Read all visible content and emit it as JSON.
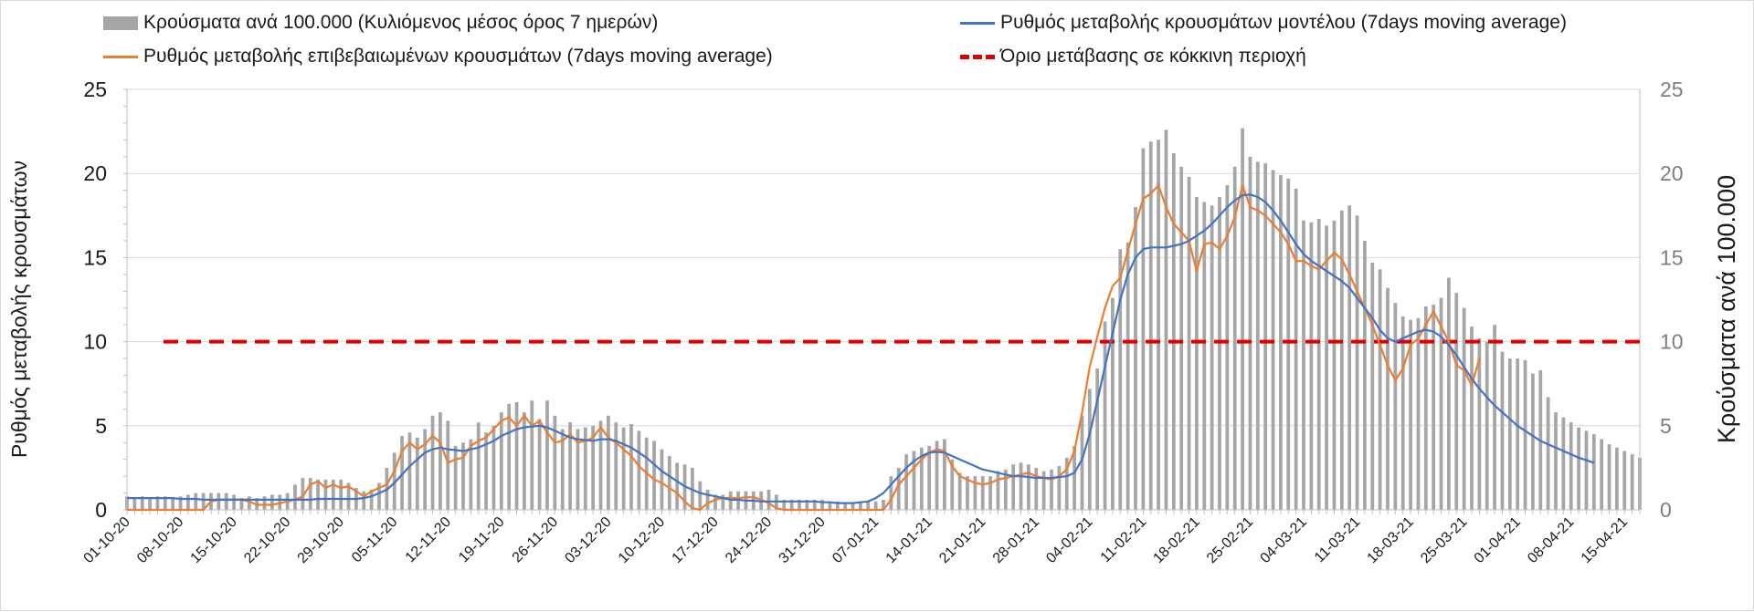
{
  "chart_data": {
    "type": "bar+line",
    "legend": {
      "bars": "Κρούσματα ανά 100.000 (Κυλιόμενος μέσος όρος 7 ημερών)",
      "model_line": "Ρυθμός μεταβολής κρουσμάτων μοντέλου (7days moving average)",
      "confirmed_line": "Ρυθμός μεταβολής επιβεβαιωμένων κρουσμάτων (7days moving average)",
      "threshold": "Όριο μετάβασης σε κόκκινη περιοχή"
    },
    "ylabel_left": "Ρυθμός μεταβολής κρουσμάτων",
    "ylabel_right": "Κρούσματα ανά 100.000",
    "ylim": [
      0,
      25
    ],
    "yticks": [
      "0",
      "5",
      "10",
      "15",
      "20",
      "25"
    ],
    "threshold_value": 10,
    "start_date": "01-10-20",
    "x_tick_labels": [
      "01-10-20",
      "08-10-20",
      "15-10-20",
      "22-10-20",
      "29-10-20",
      "05-11-20",
      "12-11-20",
      "19-11-20",
      "26-11-20",
      "03-12-20",
      "10-12-20",
      "17-12-20",
      "24-12-20",
      "31-12-20",
      "07-01-21",
      "14-01-21",
      "21-01-21",
      "28-01-21",
      "04-02-21",
      "11-02-21",
      "18-02-21",
      "25-02-21",
      "04-03-21",
      "11-03-21",
      "18-03-21",
      "25-03-21",
      "01-04-21",
      "08-04-21",
      "15-04-21"
    ],
    "cases_per_100k": [
      0.8,
      0.7,
      0.8,
      0.7,
      0.8,
      0.8,
      0.7,
      0.8,
      0.9,
      1.0,
      1.0,
      1.0,
      1.0,
      1.0,
      0.9,
      0.7,
      0.8,
      0.7,
      0.8,
      0.9,
      0.9,
      1.0,
      1.5,
      1.9,
      1.9,
      1.8,
      1.8,
      1.8,
      1.8,
      1.6,
      1.3,
      1.1,
      1.2,
      1.6,
      2.5,
      3.4,
      4.4,
      4.6,
      4.3,
      4.8,
      5.6,
      5.8,
      5.3,
      3.8,
      4.0,
      4.2,
      5.2,
      4.6,
      5.0,
      5.8,
      6.3,
      6.4,
      5.8,
      6.5,
      5.4,
      6.5,
      5.6,
      4.8,
      5.2,
      4.8,
      4.9,
      5.0,
      5.3,
      5.6,
      5.2,
      4.9,
      5.1,
      4.7,
      4.3,
      4.1,
      3.6,
      3.2,
      2.8,
      2.7,
      2.5,
      1.7,
      1.2,
      0.9,
      0.9,
      1.1,
      1.1,
      1.1,
      1.1,
      1.1,
      1.2,
      0.9,
      0.6,
      0.6,
      0.6,
      0.6,
      0.6,
      0.6,
      0.5,
      0.5,
      0.4,
      0.4,
      0.5,
      0.5,
      0.5,
      0.6,
      2.0,
      2.5,
      3.3,
      3.5,
      3.7,
      3.8,
      4.1,
      4.2,
      3.0,
      2.2,
      2.0,
      2.0,
      2.0,
      2.0,
      2.3,
      2.4,
      2.7,
      2.8,
      2.7,
      2.5,
      2.3,
      2.4,
      2.6,
      3.1,
      3.8,
      5.6,
      7.2,
      8.4,
      11.2,
      12.6,
      15.5,
      15.9,
      18.0,
      21.5,
      21.9,
      22.0,
      22.6,
      21.2,
      20.4,
      19.8,
      18.6,
      18.3,
      18.1,
      18.6,
      19.3,
      20.4,
      22.7,
      21.0,
      20.7,
      20.6,
      20.2,
      19.9,
      19.7,
      19.1,
      17.2,
      17.1,
      17.3,
      16.9,
      17.2,
      17.8,
      18.1,
      17.5,
      16.0,
      14.7,
      14.3,
      13.2,
      12.3,
      11.5,
      11.3,
      11.4,
      12.1,
      12.2,
      12.6,
      13.8,
      12.9,
      12.0,
      10.9,
      10.2,
      10.0,
      11.0,
      9.4,
      9.0,
      9.0,
      8.9,
      8.1,
      8.3,
      6.7,
      5.8,
      5.5,
      5.2,
      4.9,
      4.7,
      4.5,
      4.2,
      3.9,
      3.7,
      3.5,
      3.3,
      3.1
    ],
    "model_rate": [
      0.7,
      0.7,
      0.7,
      0.7,
      0.7,
      0.7,
      0.7,
      0.65,
      0.65,
      0.65,
      0.6,
      0.6,
      0.6,
      0.6,
      0.6,
      0.6,
      0.6,
      0.6,
      0.6,
      0.6,
      0.6,
      0.6,
      0.6,
      0.6,
      0.6,
      0.65,
      0.65,
      0.65,
      0.65,
      0.65,
      0.65,
      0.7,
      0.8,
      1.0,
      1.2,
      1.6,
      2.1,
      2.6,
      3.0,
      3.4,
      3.6,
      3.7,
      3.6,
      3.55,
      3.5,
      3.6,
      3.7,
      3.9,
      4.1,
      4.4,
      4.6,
      4.8,
      4.9,
      4.95,
      5.0,
      4.9,
      4.7,
      4.5,
      4.3,
      4.2,
      4.15,
      4.1,
      4.2,
      4.2,
      4.1,
      3.9,
      3.7,
      3.4,
      3.1,
      2.7,
      2.3,
      2.0,
      1.7,
      1.4,
      1.2,
      1.0,
      0.9,
      0.8,
      0.7,
      0.6,
      0.6,
      0.55,
      0.55,
      0.5,
      0.5,
      0.5,
      0.5,
      0.5,
      0.5,
      0.5,
      0.5,
      0.45,
      0.45,
      0.4,
      0.4,
      0.4,
      0.45,
      0.5,
      0.7,
      1.0,
      1.5,
      2.0,
      2.5,
      2.9,
      3.2,
      3.4,
      3.45,
      3.4,
      3.2,
      3.0,
      2.8,
      2.6,
      2.4,
      2.3,
      2.2,
      2.1,
      2.0,
      2.0,
      1.95,
      1.9,
      1.9,
      1.9,
      1.95,
      2.0,
      2.2,
      3.0,
      4.5,
      6.5,
      8.5,
      10.5,
      12.5,
      14.0,
      15.0,
      15.5,
      15.6,
      15.6,
      15.6,
      15.7,
      15.8,
      16.0,
      16.3,
      16.6,
      17.0,
      17.5,
      18.0,
      18.4,
      18.7,
      18.75,
      18.6,
      18.3,
      17.8,
      17.2,
      16.5,
      15.8,
      15.2,
      14.8,
      14.5,
      14.2,
      13.9,
      13.6,
      13.2,
      12.6,
      12.0,
      11.4,
      10.7,
      10.2,
      10.0,
      10.2,
      10.4,
      10.6,
      10.7,
      10.6,
      10.3,
      9.8,
      9.2,
      8.5,
      7.8,
      7.2,
      6.7,
      6.2,
      5.8,
      5.4,
      5.0,
      4.7,
      4.4,
      4.1,
      3.9,
      3.7,
      3.5,
      3.3,
      3.1,
      2.95,
      2.8
    ],
    "confirmed_rate": [
      0,
      0,
      0,
      0,
      0,
      0,
      0,
      0,
      0,
      0,
      0,
      0.5,
      0.6,
      0.6,
      0.6,
      0.6,
      0.5,
      0.3,
      0.3,
      0.3,
      0.4,
      0.5,
      0.6,
      0.8,
      1.5,
      1.7,
      1.3,
      1.5,
      1.3,
      1.4,
      1.1,
      0.8,
      1.1,
      1.3,
      1.5,
      2.3,
      3.5,
      4.0,
      3.6,
      3.9,
      4.4,
      4.0,
      2.8,
      3.0,
      3.1,
      3.8,
      4.1,
      4.3,
      4.8,
      5.3,
      5.5,
      5.0,
      5.6,
      5.0,
      5.3,
      4.6,
      4.0,
      4.1,
      4.5,
      4.0,
      4.1,
      4.3,
      4.9,
      4.3,
      4.0,
      3.6,
      3.2,
      2.6,
      2.2,
      1.8,
      1.6,
      1.3,
      1.0,
      0.5,
      0.1,
      0.0,
      0.4,
      0.6,
      0.7,
      0.7,
      0.7,
      0.75,
      0.75,
      0.6,
      0.4,
      0.1,
      0.0,
      0.0,
      0.0,
      0.0,
      0.0,
      0.0,
      0.0,
      0.0,
      0.0,
      0.0,
      0.0,
      0.0,
      0.0,
      0.0,
      0.6,
      1.5,
      2.0,
      2.5,
      3.0,
      3.4,
      3.6,
      3.5,
      2.6,
      2.0,
      1.8,
      1.6,
      1.5,
      1.6,
      1.8,
      1.9,
      2.0,
      2.1,
      2.2,
      2.0,
      1.9,
      1.8,
      2.0,
      2.4,
      3.5,
      5.8,
      8.5,
      10.3,
      12.0,
      13.3,
      13.8,
      15.4,
      17.0,
      18.5,
      18.8,
      19.3,
      18.0,
      17.0,
      16.5,
      16.0,
      14.2,
      15.8,
      15.9,
      15.5,
      16.3,
      17.4,
      19.3,
      18.0,
      17.8,
      17.5,
      17.0,
      16.5,
      15.8,
      14.8,
      14.8,
      14.5,
      14.3,
      14.8,
      15.3,
      14.9,
      14.0,
      13.0,
      12.0,
      11.0,
      9.8,
      8.6,
      7.7,
      8.4,
      9.8,
      10.2,
      11.0,
      11.8,
      10.9,
      10.0,
      8.6,
      8.3,
      7.4,
      9.0
    ],
    "colors": {
      "bars": "#a6a6a6",
      "model_line": "#4472c4",
      "confirmed_line": "#ed7d31",
      "threshold": "#e00000"
    },
    "grid": true
  }
}
